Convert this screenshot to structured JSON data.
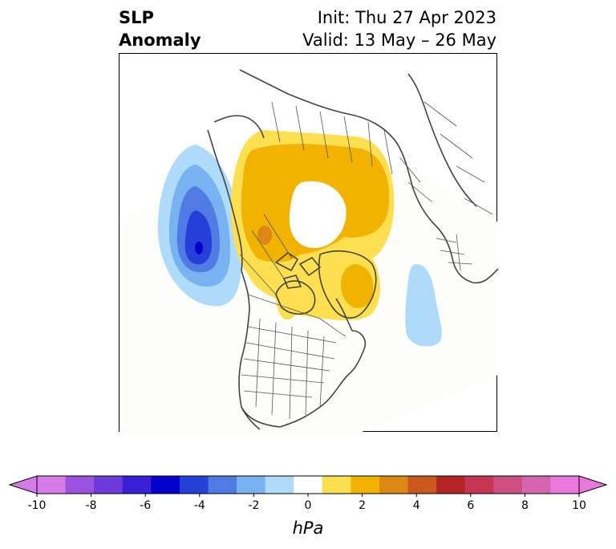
{
  "title": {
    "left_line1": "SLP",
    "left_line2": "Anomaly",
    "init": "Init: Thu 27 Apr 2023",
    "valid": "Valid: 13 May – 26 May"
  },
  "colorbar": {
    "unit": "hPa",
    "ticks": [
      "-10",
      "-8",
      "-6",
      "-4",
      "-2",
      "0",
      "2",
      "4",
      "6",
      "8",
      "10"
    ],
    "colors": [
      "#d67be8",
      "#9b52df",
      "#6b3ad9",
      "#3a1fd6",
      "#0000cc",
      "#2540d9",
      "#4f7be3",
      "#79b2f0",
      "#aedbf9",
      "#ffffff",
      "#fedf4f",
      "#f1b300",
      "#dd8814",
      "#c8581c",
      "#b32525",
      "#c63551",
      "#cd5083",
      "#d665b0",
      "#e878dc"
    ],
    "min_arrow_color": "#d67be8",
    "max_arrow_color": "#e878dc"
  },
  "map": {
    "projection": "north polar stereographic",
    "features": [
      "Pacific low anomaly (negative)",
      "Arctic high anomaly (positive)",
      "Atlantic weak negative anomaly"
    ]
  }
}
